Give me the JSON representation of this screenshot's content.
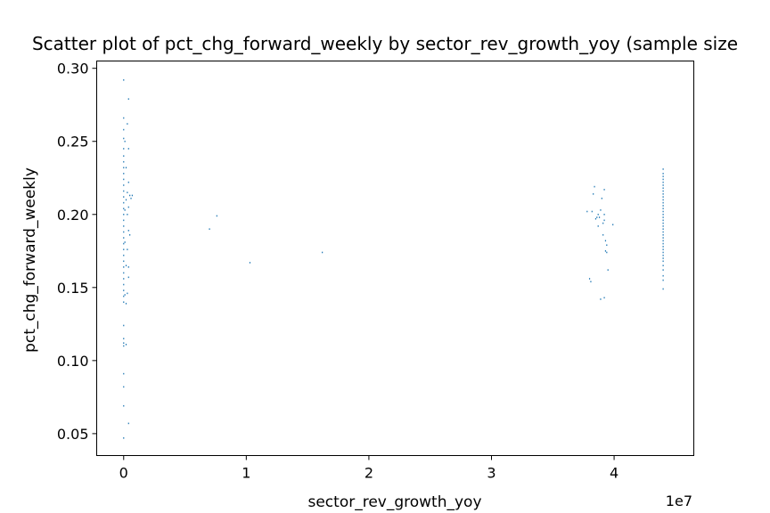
{
  "chart_data": {
    "type": "scatter",
    "title": "Scatter plot of pct_chg_forward_weekly by sector_rev_growth_yoy (sample size",
    "xlabel": "sector_rev_growth_yoy",
    "ylabel": "pct_chg_forward_weekly",
    "x_offset_label": "1e7",
    "xlim": [
      -0.22,
      4.65
    ],
    "ylim": [
      0.035,
      0.305
    ],
    "xticks": [
      0,
      1,
      2,
      3,
      4
    ],
    "xtick_labels": [
      "0",
      "1",
      "2",
      "3",
      "4"
    ],
    "yticks": [
      0.05,
      0.1,
      0.15,
      0.2,
      0.25,
      0.3
    ],
    "ytick_labels": [
      "0.05",
      "0.10",
      "0.15",
      "0.20",
      "0.25",
      "0.30"
    ],
    "grid": false,
    "marker_color": "#1f77b4",
    "points": [
      [
        0.0,
        0.292
      ],
      [
        0.0,
        0.266
      ],
      [
        0.0,
        0.258
      ],
      [
        0.0,
        0.252
      ],
      [
        0.0,
        0.245
      ],
      [
        0.0,
        0.24
      ],
      [
        0.0,
        0.236
      ],
      [
        0.0,
        0.232
      ],
      [
        0.0,
        0.228
      ],
      [
        0.0,
        0.224
      ],
      [
        0.0,
        0.22
      ],
      [
        0.0,
        0.216
      ],
      [
        0.0,
        0.212
      ],
      [
        0.0,
        0.208
      ],
      [
        0.0,
        0.204
      ],
      [
        0.0,
        0.2
      ],
      [
        0.0,
        0.196
      ],
      [
        0.0,
        0.192
      ],
      [
        0.0,
        0.188
      ],
      [
        0.0,
        0.184
      ],
      [
        0.0,
        0.18
      ],
      [
        0.0,
        0.176
      ],
      [
        0.0,
        0.172
      ],
      [
        0.0,
        0.168
      ],
      [
        0.0,
        0.164
      ],
      [
        0.0,
        0.16
      ],
      [
        0.0,
        0.156
      ],
      [
        0.0,
        0.152
      ],
      [
        0.0,
        0.148
      ],
      [
        0.0,
        0.144
      ],
      [
        0.0,
        0.14
      ],
      [
        0.0,
        0.124
      ],
      [
        0.0,
        0.115
      ],
      [
        0.0,
        0.112
      ],
      [
        0.0,
        0.11
      ],
      [
        0.0,
        0.091
      ],
      [
        0.0,
        0.082
      ],
      [
        0.0,
        0.069
      ],
      [
        0.0,
        0.047
      ],
      [
        0.01,
        0.25
      ],
      [
        0.01,
        0.203
      ],
      [
        0.01,
        0.181
      ],
      [
        0.01,
        0.145
      ],
      [
        0.02,
        0.232
      ],
      [
        0.02,
        0.21
      ],
      [
        0.02,
        0.165
      ],
      [
        0.02,
        0.139
      ],
      [
        0.02,
        0.111
      ],
      [
        0.03,
        0.262
      ],
      [
        0.03,
        0.215
      ],
      [
        0.03,
        0.2
      ],
      [
        0.03,
        0.176
      ],
      [
        0.03,
        0.146
      ],
      [
        0.04,
        0.279
      ],
      [
        0.04,
        0.245
      ],
      [
        0.04,
        0.222
      ],
      [
        0.04,
        0.205
      ],
      [
        0.04,
        0.189
      ],
      [
        0.04,
        0.164
      ],
      [
        0.04,
        0.157
      ],
      [
        0.04,
        0.057
      ],
      [
        0.05,
        0.213
      ],
      [
        0.05,
        0.186
      ],
      [
        0.06,
        0.211
      ],
      [
        0.07,
        0.213
      ],
      [
        0.7,
        0.19
      ],
      [
        0.76,
        0.199
      ],
      [
        1.03,
        0.167
      ],
      [
        1.62,
        0.174
      ],
      [
        3.78,
        0.202
      ],
      [
        3.8,
        0.156
      ],
      [
        3.81,
        0.154
      ],
      [
        3.82,
        0.202
      ],
      [
        3.83,
        0.214
      ],
      [
        3.84,
        0.219
      ],
      [
        3.85,
        0.197
      ],
      [
        3.86,
        0.198
      ],
      [
        3.87,
        0.2
      ],
      [
        3.87,
        0.192
      ],
      [
        3.88,
        0.198
      ],
      [
        3.89,
        0.203
      ],
      [
        3.89,
        0.142
      ],
      [
        3.9,
        0.211
      ],
      [
        3.91,
        0.194
      ],
      [
        3.91,
        0.186
      ],
      [
        3.92,
        0.217
      ],
      [
        3.92,
        0.2
      ],
      [
        3.92,
        0.196
      ],
      [
        3.92,
        0.143
      ],
      [
        3.93,
        0.175
      ],
      [
        3.93,
        0.182
      ],
      [
        3.94,
        0.174
      ],
      [
        3.94,
        0.179
      ],
      [
        3.95,
        0.162
      ],
      [
        3.99,
        0.193
      ],
      [
        4.4,
        0.231
      ],
      [
        4.4,
        0.228
      ],
      [
        4.4,
        0.226
      ],
      [
        4.4,
        0.224
      ],
      [
        4.4,
        0.222
      ],
      [
        4.4,
        0.22
      ],
      [
        4.4,
        0.218
      ],
      [
        4.4,
        0.216
      ],
      [
        4.4,
        0.214
      ],
      [
        4.4,
        0.212
      ],
      [
        4.4,
        0.21
      ],
      [
        4.4,
        0.208
      ],
      [
        4.4,
        0.206
      ],
      [
        4.4,
        0.204
      ],
      [
        4.4,
        0.202
      ],
      [
        4.4,
        0.2
      ],
      [
        4.4,
        0.198
      ],
      [
        4.4,
        0.196
      ],
      [
        4.4,
        0.194
      ],
      [
        4.4,
        0.192
      ],
      [
        4.4,
        0.19
      ],
      [
        4.4,
        0.188
      ],
      [
        4.4,
        0.186
      ],
      [
        4.4,
        0.184
      ],
      [
        4.4,
        0.182
      ],
      [
        4.4,
        0.18
      ],
      [
        4.4,
        0.178
      ],
      [
        4.4,
        0.176
      ],
      [
        4.4,
        0.174
      ],
      [
        4.4,
        0.172
      ],
      [
        4.4,
        0.17
      ],
      [
        4.4,
        0.168
      ],
      [
        4.4,
        0.165
      ],
      [
        4.4,
        0.162
      ],
      [
        4.4,
        0.158
      ],
      [
        4.4,
        0.155
      ],
      [
        4.4,
        0.149
      ]
    ]
  }
}
